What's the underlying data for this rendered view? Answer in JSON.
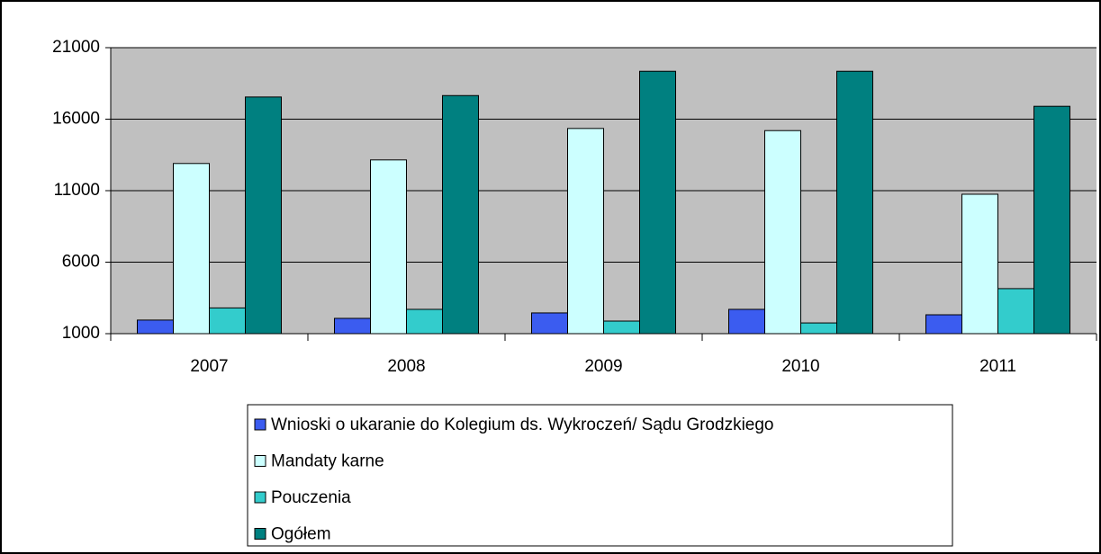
{
  "chart_data": {
    "type": "bar",
    "categories": [
      "2007",
      "2008",
      "2009",
      "2010",
      "2011"
    ],
    "series": [
      {
        "name": "Wnioski o ukaranie do Kolegium ds. Wykroczeń/ Sądu Grodzkiego",
        "color": "#3b5cf0",
        "values": [
          1950,
          2070,
          2450,
          2700,
          2320
        ]
      },
      {
        "name": "Mandaty karne",
        "color": "#ccffff",
        "values": [
          12900,
          13150,
          15350,
          15200,
          10750
        ]
      },
      {
        "name": "Pouczenia",
        "color": "#33cccc",
        "values": [
          2800,
          2700,
          1880,
          1750,
          4150
        ]
      },
      {
        "name": "Ogółem",
        "color": "#008080",
        "values": [
          17550,
          17650,
          19350,
          19350,
          16900
        ]
      }
    ],
    "ylim": [
      1000,
      21000
    ],
    "yticks": [
      1000,
      6000,
      11000,
      16000,
      21000
    ],
    "grid": true,
    "legend": "bottom"
  }
}
